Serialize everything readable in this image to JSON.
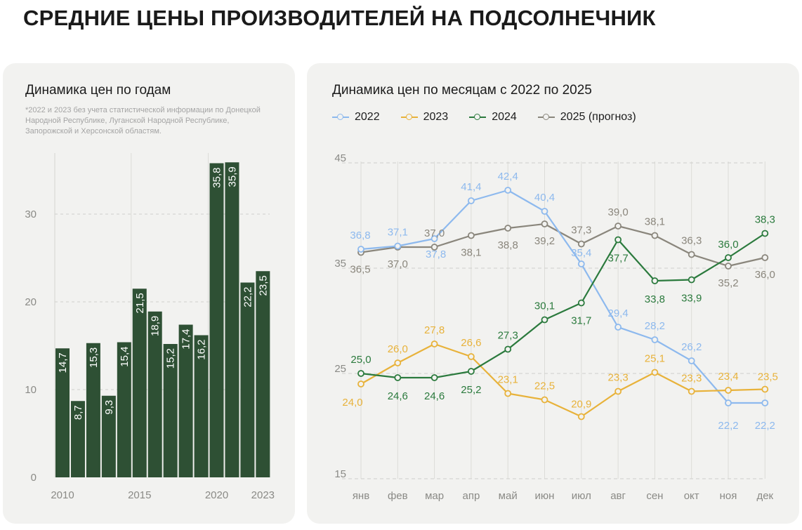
{
  "title": "СРЕДНИЕ ЦЕНЫ ПРОИЗВОДИТЕЛЕЙ НА ПОДСОЛНЕЧНИК",
  "colors": {
    "bar": "#2e5034",
    "s2022": "#8db9ee",
    "s2023": "#e8b23a",
    "s2024": "#2b7a3d",
    "s2025": "#8a867c"
  },
  "left_card": {
    "title": "Динамика цен по годам",
    "footnote": "*2022 и 2023 без учета статистической информации по Донецкой Народной Республике, Луганской Народной Республике, Запорожской и Херсонской областям."
  },
  "right_card": {
    "title": "Динамика цен по месяцам с 2022 по 2025"
  },
  "chart_data": [
    {
      "type": "bar",
      "title": "Динамика цен по годам",
      "categories": [
        "2010",
        "2011",
        "2012",
        "2013",
        "2014",
        "2015",
        "2016",
        "2017",
        "2018",
        "2019",
        "2020",
        "2021",
        "2022",
        "2023"
      ],
      "values": [
        14.7,
        8.7,
        15.3,
        9.3,
        15.4,
        21.5,
        18.9,
        15.2,
        17.4,
        16.2,
        35.8,
        35.9,
        22.2,
        23.5
      ],
      "value_labels": [
        "14,7",
        "8,7",
        "15,3",
        "9,3",
        "15,4",
        "21,5",
        "18,9",
        "15,2",
        "17,4",
        "16,2",
        "35,8",
        "35,9",
        "22,2",
        "23,5"
      ],
      "x_tick_labels": [
        "2010",
        "2015",
        "2020",
        "2023"
      ],
      "y_ticks": [
        0,
        10,
        20,
        30
      ],
      "ylim": [
        0,
        36
      ],
      "grid": true
    },
    {
      "type": "line",
      "title": "Динамика цен по месяцам с 2022 по 2025",
      "categories": [
        "янв",
        "фев",
        "мар",
        "апр",
        "май",
        "июн",
        "июл",
        "авг",
        "сен",
        "окт",
        "ноя",
        "дек"
      ],
      "y_ticks": [
        15,
        25,
        35,
        45
      ],
      "ylim": [
        15,
        45
      ],
      "grid": true,
      "legend_position": "top-left",
      "series": [
        {
          "name": "2022",
          "color": "#8db9ee",
          "values": [
            36.8,
            37.1,
            37.8,
            41.4,
            42.4,
            40.4,
            35.4,
            29.4,
            28.2,
            26.2,
            22.2,
            22.2
          ],
          "labels": [
            "36,8",
            "37,1",
            "37,8",
            "41,4",
            "42,4",
            "40,4",
            "35,4",
            "29,4",
            "28,2",
            "26,2",
            "22,2",
            "22,2"
          ]
        },
        {
          "name": "2023",
          "color": "#e8b23a",
          "values": [
            24.0,
            26.0,
            27.8,
            26.6,
            23.1,
            22.5,
            20.9,
            23.3,
            25.1,
            23.3,
            23.4,
            23.5
          ],
          "labels": [
            "24,0",
            "26,0",
            "27,8",
            "26,6",
            "23,1",
            "22,5",
            "20,9",
            "23,3",
            "25,1",
            "23,3",
            "23,4",
            "23,5"
          ]
        },
        {
          "name": "2024",
          "color": "#2b7a3d",
          "values": [
            25.0,
            24.6,
            24.6,
            25.2,
            27.3,
            30.1,
            31.7,
            37.7,
            33.8,
            33.9,
            36.0,
            38.3
          ],
          "labels": [
            "25,0",
            "24,6",
            "24,6",
            "25,2",
            "27,3",
            "30,1",
            "31,7",
            "37,7",
            "33,8",
            "33,9",
            "36,0",
            "38,3"
          ]
        },
        {
          "name": "2025 (прогноз)",
          "color": "#8a867c",
          "values": [
            36.5,
            37.0,
            37.0,
            38.1,
            38.8,
            39.2,
            37.3,
            39.0,
            38.1,
            36.3,
            35.2,
            36.0
          ],
          "labels": [
            "36,5",
            "37,0",
            "37,0",
            "38,1",
            "38,8",
            "39,2",
            "37,3",
            "39,0",
            "38,1",
            "36,3",
            "35,2",
            "36,0"
          ]
        }
      ]
    }
  ]
}
